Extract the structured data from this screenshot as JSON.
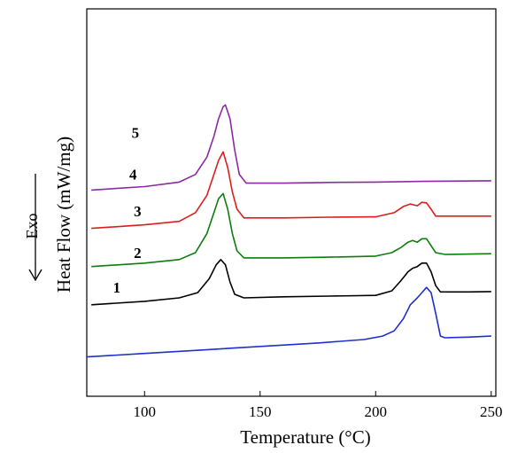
{
  "chart_data": {
    "type": "line",
    "title": "",
    "xlabel": "Temperature (°C)",
    "ylabel": "Heat Flow (mW/mg)",
    "annotation": "Exo",
    "xlim": [
      75,
      252
    ],
    "xticks": [
      100,
      150,
      200,
      250
    ],
    "ylim": [
      0,
      1
    ],
    "grid": false,
    "legend": "none",
    "series": [
      {
        "name": "1",
        "color": "#1f2fd0",
        "label_at": [
          88,
          0.26
        ],
        "points": [
          [
            75,
            0.075
          ],
          [
            100,
            0.085
          ],
          [
            125,
            0.095
          ],
          [
            150,
            0.105
          ],
          [
            175,
            0.115
          ],
          [
            195,
            0.125
          ],
          [
            203,
            0.135
          ],
          [
            208,
            0.15
          ],
          [
            212,
            0.185
          ],
          [
            215,
            0.225
          ],
          [
            218,
            0.245
          ],
          [
            220,
            0.26
          ],
          [
            222,
            0.275
          ],
          [
            224,
            0.26
          ],
          [
            226,
            0.2
          ],
          [
            228,
            0.135
          ],
          [
            230,
            0.13
          ],
          [
            240,
            0.132
          ],
          [
            250,
            0.135
          ]
        ]
      },
      {
        "name": "2",
        "color": "#000000",
        "label_at": [
          97,
          0.36
        ],
        "points": [
          [
            77,
            0.225
          ],
          [
            100,
            0.235
          ],
          [
            115,
            0.245
          ],
          [
            123,
            0.26
          ],
          [
            128,
            0.3
          ],
          [
            131,
            0.34
          ],
          [
            133,
            0.355
          ],
          [
            135,
            0.34
          ],
          [
            137,
            0.29
          ],
          [
            139,
            0.255
          ],
          [
            143,
            0.245
          ],
          [
            160,
            0.248
          ],
          [
            180,
            0.25
          ],
          [
            200,
            0.252
          ],
          [
            207,
            0.265
          ],
          [
            211,
            0.295
          ],
          [
            214,
            0.32
          ],
          [
            216,
            0.33
          ],
          [
            218,
            0.335
          ],
          [
            220,
            0.345
          ],
          [
            222,
            0.345
          ],
          [
            224,
            0.32
          ],
          [
            226,
            0.28
          ],
          [
            228,
            0.262
          ],
          [
            240,
            0.262
          ],
          [
            250,
            0.263
          ]
        ]
      },
      {
        "name": "3",
        "color": "#0d7d0d",
        "label_at": [
          97,
          0.48
        ],
        "points": [
          [
            77,
            0.335
          ],
          [
            100,
            0.345
          ],
          [
            115,
            0.355
          ],
          [
            122,
            0.375
          ],
          [
            127,
            0.43
          ],
          [
            130,
            0.49
          ],
          [
            132,
            0.53
          ],
          [
            134,
            0.545
          ],
          [
            136,
            0.5
          ],
          [
            138,
            0.43
          ],
          [
            140,
            0.38
          ],
          [
            143,
            0.36
          ],
          [
            160,
            0.36
          ],
          [
            180,
            0.362
          ],
          [
            200,
            0.365
          ],
          [
            207,
            0.375
          ],
          [
            211,
            0.39
          ],
          [
            214,
            0.405
          ],
          [
            216,
            0.41
          ],
          [
            218,
            0.405
          ],
          [
            220,
            0.415
          ],
          [
            222,
            0.415
          ],
          [
            224,
            0.395
          ],
          [
            226,
            0.375
          ],
          [
            230,
            0.37
          ],
          [
            250,
            0.372
          ]
        ]
      },
      {
        "name": "4",
        "color": "#dd1d1d",
        "label_at": [
          95,
          0.585
        ],
        "points": [
          [
            77,
            0.445
          ],
          [
            100,
            0.455
          ],
          [
            115,
            0.465
          ],
          [
            122,
            0.49
          ],
          [
            127,
            0.54
          ],
          [
            130,
            0.6
          ],
          [
            132,
            0.64
          ],
          [
            134,
            0.665
          ],
          [
            136,
            0.62
          ],
          [
            138,
            0.55
          ],
          [
            140,
            0.5
          ],
          [
            143,
            0.475
          ],
          [
            160,
            0.475
          ],
          [
            180,
            0.477
          ],
          [
            200,
            0.478
          ],
          [
            208,
            0.49
          ],
          [
            212,
            0.508
          ],
          [
            215,
            0.515
          ],
          [
            218,
            0.51
          ],
          [
            220,
            0.52
          ],
          [
            222,
            0.518
          ],
          [
            224,
            0.5
          ],
          [
            226,
            0.48
          ],
          [
            230,
            0.48
          ],
          [
            250,
            0.48
          ]
        ]
      },
      {
        "name": "5",
        "color": "#8b2aa3",
        "label_at": [
          96,
          0.705
        ],
        "points": [
          [
            77,
            0.555
          ],
          [
            100,
            0.565
          ],
          [
            115,
            0.578
          ],
          [
            122,
            0.6
          ],
          [
            127,
            0.65
          ],
          [
            130,
            0.71
          ],
          [
            132,
            0.76
          ],
          [
            134,
            0.795
          ],
          [
            135,
            0.8
          ],
          [
            137,
            0.76
          ],
          [
            139,
            0.67
          ],
          [
            141,
            0.6
          ],
          [
            144,
            0.575
          ],
          [
            160,
            0.575
          ],
          [
            180,
            0.577
          ],
          [
            200,
            0.578
          ],
          [
            220,
            0.58
          ],
          [
            250,
            0.582
          ]
        ]
      }
    ]
  }
}
